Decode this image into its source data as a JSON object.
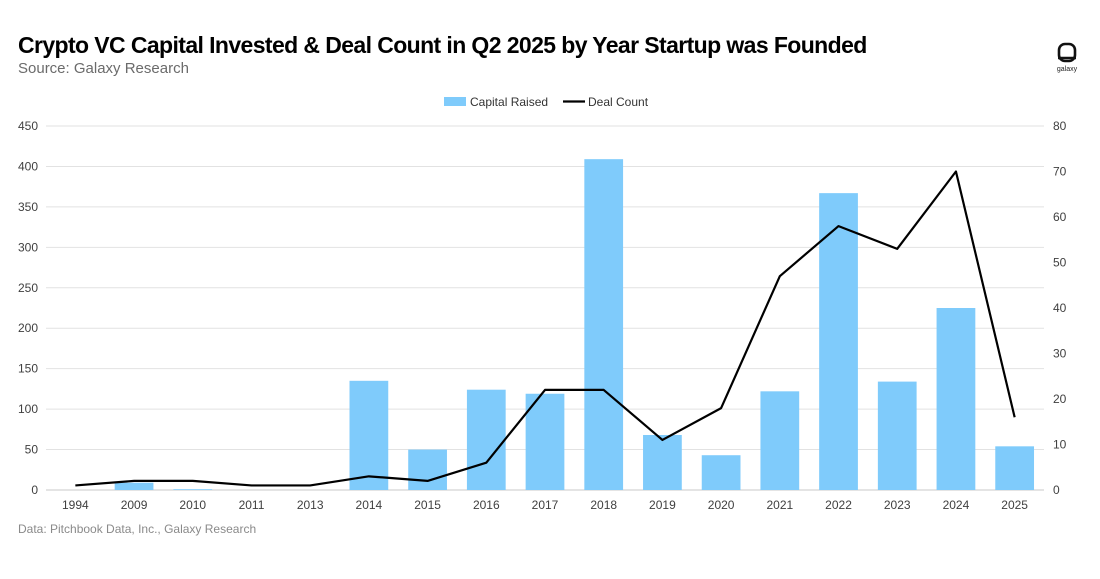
{
  "header": {
    "title": "Crypto VC Capital Invested & Deal Count in Q2 2025 by Year Startup was Founded",
    "subtitle": "Source: Galaxy Research"
  },
  "footer": {
    "note": "Data: Pitchbook Data, Inc., Galaxy Research"
  },
  "logo": {
    "text": "galaxy"
  },
  "colors": {
    "bar": "#7fcbfb",
    "line": "#000000",
    "grid": "#e2e2e2",
    "axis_text": "#404040"
  },
  "chart_data": {
    "type": "bar",
    "title": "Crypto VC Capital Invested & Deal Count in Q2 2025 by Year Startup was Founded",
    "categories": [
      "1994",
      "2009",
      "2010",
      "2011",
      "2013",
      "2014",
      "2015",
      "2016",
      "2017",
      "2018",
      "2019",
      "2020",
      "2021",
      "2022",
      "2023",
      "2024",
      "2025"
    ],
    "series": [
      {
        "name": "Capital Raised",
        "type": "bar",
        "axis": "left",
        "values": [
          0,
          9,
          1,
          0,
          0,
          135,
          50,
          124,
          119,
          409,
          68,
          43,
          122,
          367,
          134,
          225,
          54
        ]
      },
      {
        "name": "Deal Count",
        "type": "line",
        "axis": "right",
        "values": [
          1,
          2,
          2,
          1,
          1,
          3,
          2,
          6,
          22,
          22,
          11,
          18,
          47,
          58,
          53,
          70,
          16
        ]
      }
    ],
    "left_axis": {
      "ylim": [
        0,
        450
      ],
      "ticks": [
        "0",
        "50",
        "100",
        "150",
        "200",
        "250",
        "300",
        "350",
        "400",
        "450"
      ]
    },
    "right_axis": {
      "ylim": [
        0,
        80
      ],
      "ticks": [
        "0",
        "10",
        "20",
        "30",
        "40",
        "50",
        "60",
        "70",
        "80"
      ]
    },
    "legend": {
      "position": "top-center",
      "entries": [
        "Capital Raised",
        "Deal Count"
      ]
    },
    "grid": true
  }
}
